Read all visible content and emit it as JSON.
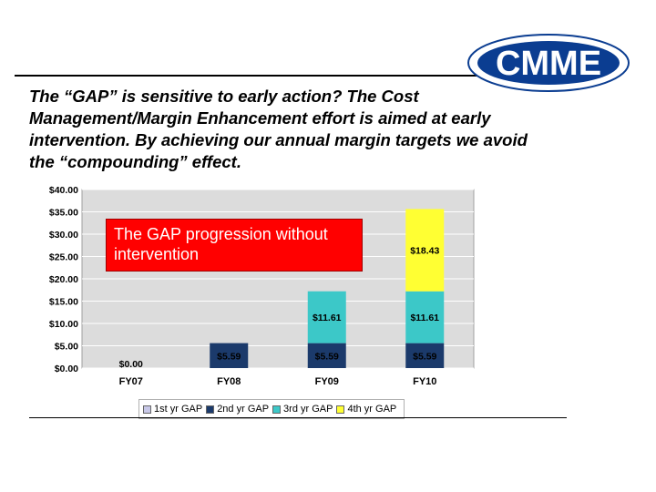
{
  "logo": {
    "text": "CMME"
  },
  "heading": {
    "lines": [
      "The “GAP” is sensitive to early action? The Cost",
      "Management/Margin Enhancement effort is aimed at early",
      "intervention. By achieving our annual margin targets we avoid",
      "the “compounding” effect."
    ]
  },
  "callout": {
    "text": "The GAP progression without intervention"
  },
  "chart_data": {
    "type": "bar",
    "stacked": true,
    "categories": [
      "FY07",
      "FY08",
      "FY09",
      "FY10"
    ],
    "series": [
      {
        "name": "1st yr GAP",
        "color": "#c8c8e8",
        "values": [
          0.0,
          null,
          null,
          null
        ],
        "labels": [
          "$0.00",
          "",
          "",
          ""
        ]
      },
      {
        "name": "2nd yr GAP",
        "color": "#1b3a6b",
        "values": [
          null,
          5.59,
          5.59,
          5.59
        ],
        "labels": [
          "",
          "$5.59",
          "$5.59",
          "$5.59"
        ]
      },
      {
        "name": "3rd yr GAP",
        "color": "#3cc8c8",
        "values": [
          null,
          null,
          11.61,
          11.61
        ],
        "labels": [
          "",
          "",
          "$11.61",
          "$11.61"
        ]
      },
      {
        "name": "4th yr GAP",
        "color": "#ffff33",
        "values": [
          null,
          null,
          null,
          18.43
        ],
        "labels": [
          "",
          "",
          "",
          "$18.43"
        ]
      }
    ],
    "y_ticks": [
      "$0.00",
      "$5.00",
      "$10.00",
      "$15.00",
      "$20.00",
      "$25.00",
      "$30.00",
      "$35.00",
      "$40.00"
    ],
    "ylim": [
      0,
      40
    ],
    "plot_background": "#dcdcdc",
    "legend_position": "bottom"
  }
}
